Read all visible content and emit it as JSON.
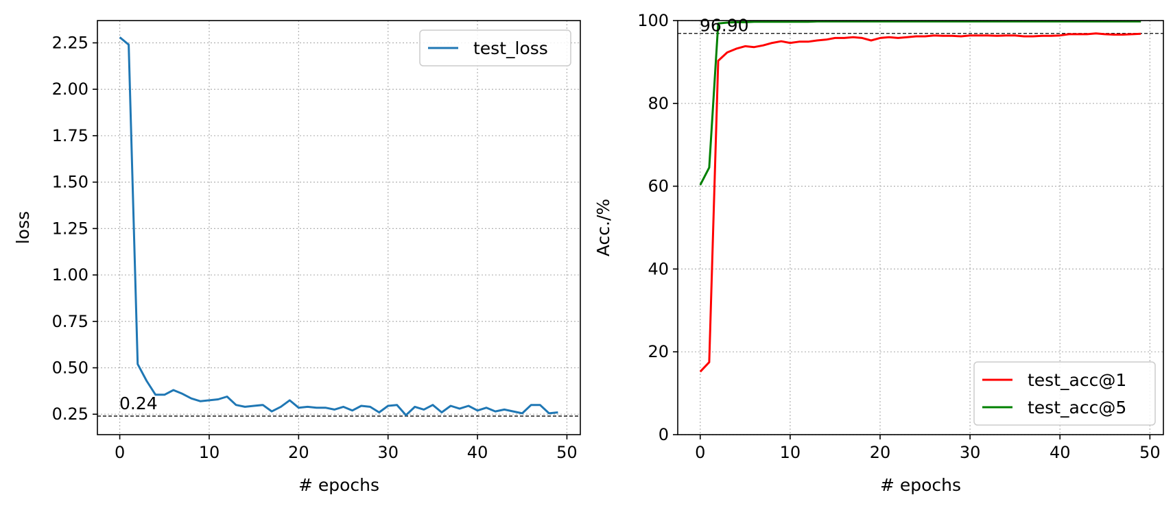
{
  "chart_data": [
    {
      "type": "line",
      "xlabel": "# epochs",
      "ylabel": "loss",
      "xlim": [
        -2.5,
        51.5
      ],
      "ylim": [
        0.14,
        2.37
      ],
      "xticks": [
        0,
        10,
        20,
        30,
        40,
        50
      ],
      "yticks": [
        0.25,
        0.5,
        0.75,
        1.0,
        1.25,
        1.5,
        1.75,
        2.0,
        2.25
      ],
      "ytick_labels": [
        "0.25",
        "0.50",
        "0.75",
        "1.00",
        "1.25",
        "1.50",
        "1.75",
        "2.00",
        "2.25"
      ],
      "grid": true,
      "legend": "upper right",
      "x": [
        0,
        1,
        2,
        3,
        4,
        5,
        6,
        7,
        8,
        9,
        10,
        11,
        12,
        13,
        14,
        15,
        16,
        17,
        18,
        19,
        20,
        21,
        22,
        23,
        24,
        25,
        26,
        27,
        28,
        29,
        30,
        31,
        32,
        33,
        34,
        35,
        36,
        37,
        38,
        39,
        40,
        41,
        42,
        43,
        44,
        45,
        46,
        47,
        48,
        49
      ],
      "series": [
        {
          "name": "test_loss",
          "color": "#1f77b4",
          "values": [
            2.28,
            2.24,
            0.52,
            0.43,
            0.355,
            0.355,
            0.38,
            0.36,
            0.335,
            0.32,
            0.325,
            0.33,
            0.345,
            0.3,
            0.29,
            0.295,
            0.3,
            0.265,
            0.29,
            0.325,
            0.285,
            0.29,
            0.285,
            0.285,
            0.275,
            0.29,
            0.27,
            0.295,
            0.29,
            0.26,
            0.295,
            0.3,
            0.245,
            0.29,
            0.275,
            0.3,
            0.26,
            0.295,
            0.28,
            0.295,
            0.27,
            0.285,
            0.265,
            0.275,
            0.265,
            0.255,
            0.3,
            0.3,
            0.255,
            0.26
          ]
        }
      ],
      "reference_line": {
        "y": 0.24,
        "label": "0.24"
      }
    },
    {
      "type": "line",
      "xlabel": "# epochs",
      "ylabel": "Acc./%",
      "xlim": [
        -2.5,
        51.5
      ],
      "ylim": [
        0,
        100
      ],
      "xticks": [
        0,
        10,
        20,
        30,
        40,
        50
      ],
      "yticks": [
        0,
        20,
        40,
        60,
        80,
        100
      ],
      "ytick_labels": [
        "0",
        "20",
        "40",
        "60",
        "80",
        "100"
      ],
      "grid": true,
      "legend": "lower right",
      "x": [
        0,
        1,
        2,
        3,
        4,
        5,
        6,
        7,
        8,
        9,
        10,
        11,
        12,
        13,
        14,
        15,
        16,
        17,
        18,
        19,
        20,
        21,
        22,
        23,
        24,
        25,
        26,
        27,
        28,
        29,
        30,
        31,
        32,
        33,
        34,
        35,
        36,
        37,
        38,
        39,
        40,
        41,
        42,
        43,
        44,
        45,
        46,
        47,
        48,
        49
      ],
      "series": [
        {
          "name": "test_acc@1",
          "color": "#ff0000",
          "values": [
            15.2,
            17.5,
            90.3,
            92.3,
            93.2,
            93.8,
            93.6,
            94.0,
            94.6,
            95.0,
            94.6,
            94.9,
            94.9,
            95.2,
            95.4,
            95.8,
            95.8,
            96.0,
            95.8,
            95.2,
            95.8,
            96.0,
            95.8,
            96.0,
            96.2,
            96.2,
            96.4,
            96.3,
            96.3,
            96.2,
            96.4,
            96.4,
            96.4,
            96.3,
            96.4,
            96.4,
            96.2,
            96.2,
            96.3,
            96.3,
            96.4,
            96.7,
            96.7,
            96.7,
            96.9,
            96.7,
            96.6,
            96.6,
            96.7,
            96.8
          ]
        },
        {
          "name": "test_acc@5",
          "color": "#008000",
          "values": [
            60.3,
            64.5,
            99.3,
            99.5,
            99.6,
            99.6,
            99.7,
            99.7,
            99.7,
            99.7,
            99.7,
            99.7,
            99.7,
            99.8,
            99.8,
            99.8,
            99.8,
            99.8,
            99.8,
            99.8,
            99.8,
            99.8,
            99.8,
            99.8,
            99.8,
            99.8,
            99.8,
            99.8,
            99.8,
            99.8,
            99.8,
            99.8,
            99.8,
            99.8,
            99.8,
            99.8,
            99.8,
            99.8,
            99.8,
            99.8,
            99.8,
            99.8,
            99.8,
            99.8,
            99.8,
            99.8,
            99.8,
            99.8,
            99.8,
            99.8
          ]
        }
      ],
      "reference_line": {
        "y": 96.9,
        "label": "96.90"
      }
    }
  ]
}
